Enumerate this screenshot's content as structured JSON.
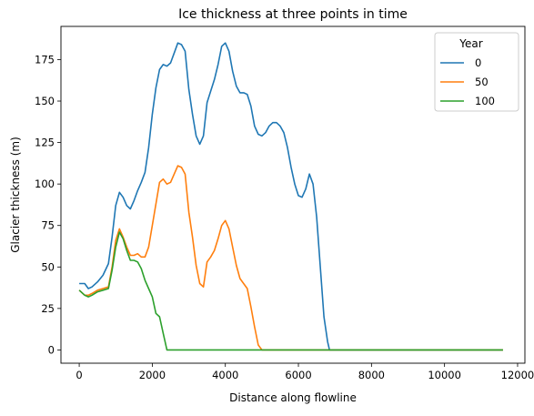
{
  "chart_data": {
    "type": "line",
    "title": "Ice thickness at three points in time",
    "xlabel": "Distance along flowline",
    "ylabel": "Glacier thickness (m)",
    "xlim": [
      -500,
      12200
    ],
    "ylim": [
      -8,
      195
    ],
    "xticks": [
      0,
      2000,
      4000,
      6000,
      8000,
      10000,
      12000
    ],
    "yticks": [
      0,
      25,
      50,
      75,
      100,
      125,
      150,
      175
    ],
    "grid": false,
    "legend": {
      "title": "Year",
      "placement": "top-right"
    },
    "series": [
      {
        "name": "0",
        "color": "#1f77b4",
        "x": [
          0,
          150,
          250,
          350,
          500,
          650,
          800,
          900,
          1000,
          1100,
          1200,
          1300,
          1400,
          1500,
          1600,
          1700,
          1800,
          1900,
          2000,
          2100,
          2200,
          2300,
          2400,
          2500,
          2600,
          2700,
          2800,
          2900,
          3000,
          3100,
          3200,
          3300,
          3400,
          3500,
          3600,
          3700,
          3800,
          3900,
          4000,
          4100,
          4200,
          4300,
          4400,
          4500,
          4600,
          4700,
          4800,
          4900,
          5000,
          5100,
          5200,
          5300,
          5400,
          5500,
          5600,
          5700,
          5800,
          5900,
          6000,
          6100,
          6200,
          6300,
          6400,
          6500,
          6600,
          6700,
          6800,
          6850,
          6900,
          7000,
          8000,
          9000,
          10000,
          11000,
          11600
        ],
        "values": [
          40,
          40,
          37,
          38,
          41,
          45,
          52,
          68,
          87,
          95,
          92,
          87,
          85,
          90,
          96,
          101,
          107,
          122,
          142,
          158,
          169,
          172,
          171,
          173,
          179,
          185,
          184,
          180,
          157,
          142,
          129,
          124,
          129,
          149,
          156,
          163,
          172,
          183,
          185,
          180,
          168,
          159,
          155,
          155,
          154,
          147,
          135,
          130,
          129,
          131,
          135,
          137,
          137,
          135,
          131,
          122,
          110,
          100,
          93,
          92,
          97,
          106,
          100,
          80,
          50,
          20,
          5,
          0,
          0,
          0,
          0,
          0,
          0,
          0,
          0
        ]
      },
      {
        "name": "50",
        "color": "#ff7f0e",
        "x": [
          0,
          150,
          250,
          350,
          500,
          650,
          800,
          900,
          1000,
          1100,
          1200,
          1300,
          1400,
          1500,
          1600,
          1700,
          1800,
          1900,
          2000,
          2100,
          2200,
          2300,
          2400,
          2500,
          2600,
          2700,
          2800,
          2900,
          3000,
          3100,
          3200,
          3300,
          3400,
          3500,
          3600,
          3700,
          3800,
          3900,
          4000,
          4100,
          4200,
          4300,
          4400,
          4500,
          4600,
          4700,
          4800,
          4900,
          5000,
          5100,
          6000,
          8000,
          10000,
          11600
        ],
        "values": [
          36,
          33,
          33,
          34,
          36,
          37,
          38,
          50,
          66,
          73,
          68,
          62,
          57,
          57,
          58,
          56,
          56,
          62,
          75,
          88,
          101,
          103,
          100,
          101,
          106,
          111,
          110,
          106,
          83,
          68,
          51,
          40,
          38,
          53,
          56,
          60,
          67,
          75,
          78,
          73,
          62,
          51,
          43,
          40,
          37,
          26,
          14,
          3,
          0,
          0,
          0,
          0,
          0,
          0
        ]
      },
      {
        "name": "100",
        "color": "#2ca02c",
        "x": [
          0,
          150,
          250,
          350,
          500,
          650,
          800,
          900,
          1000,
          1100,
          1200,
          1300,
          1400,
          1500,
          1600,
          1700,
          1800,
          1900,
          2000,
          2100,
          2200,
          2300,
          2400,
          2500,
          4000,
          6000,
          8000,
          10000,
          11600
        ],
        "values": [
          36,
          33,
          32,
          33,
          35,
          36,
          37,
          48,
          62,
          71,
          67,
          60,
          54,
          54,
          53,
          49,
          42,
          37,
          32,
          22,
          20,
          10,
          0,
          0,
          0,
          0,
          0,
          0,
          0
        ]
      }
    ]
  }
}
